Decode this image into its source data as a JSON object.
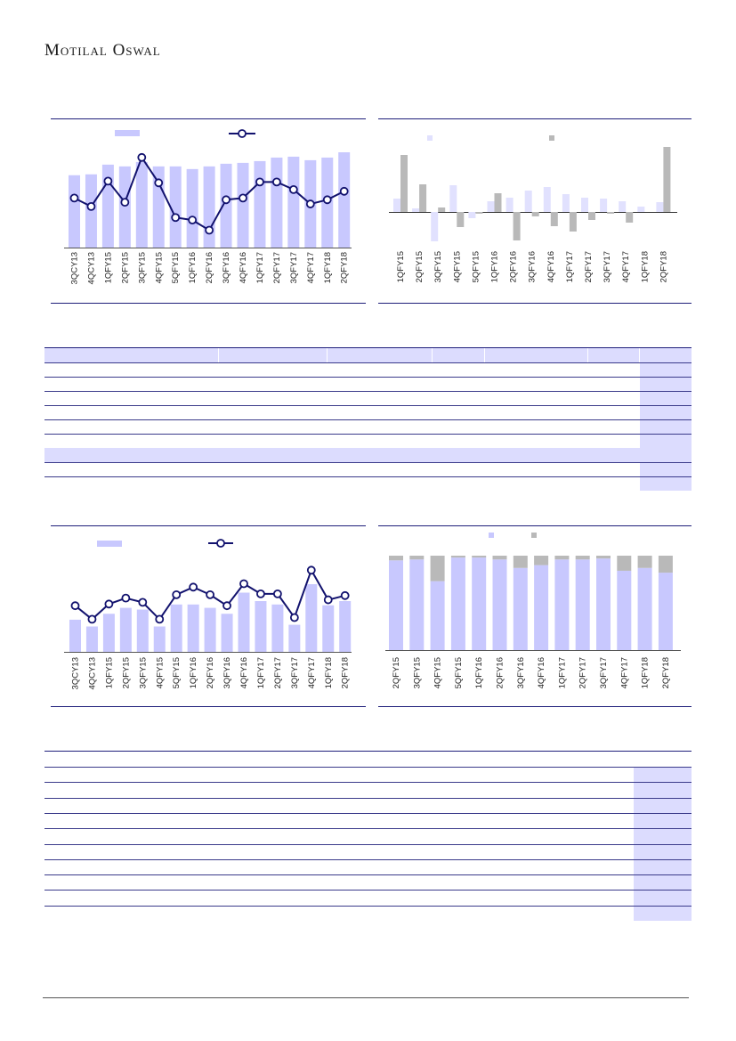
{
  "header": {
    "logo_text": "Motilal Oswal"
  },
  "colors": {
    "bar": "#c8c8fe",
    "bar_light": "#e1e1fe",
    "grey": "#b9b9b9",
    "line": "#12126e",
    "rule": "#1e1e7a",
    "highlight": "#dcdcfe"
  },
  "chart_data": [
    {
      "type": "bar",
      "categories": [
        "3QCY13",
        "4QCY13",
        "1QFY15",
        "2QFY15",
        "3QFY15",
        "4QFY15",
        "5QFY15",
        "1QFY16",
        "2QFY16",
        "3QFY16",
        "4QFY16",
        "1QFY17",
        "2QFY17",
        "3QFY17",
        "4QFY17",
        "1QFY18",
        "2QFY18"
      ],
      "series": [
        {
          "values": [
            82,
            83,
            94,
            92,
            97,
            92,
            92,
            89,
            92,
            95,
            96,
            98,
            102,
            103,
            99,
            102,
            108
          ]
        },
        {
          "values": [
            48,
            38,
            68,
            43,
            96,
            66,
            25,
            22,
            10,
            46,
            48,
            67,
            67,
            58,
            41,
            46,
            56
          ]
        }
      ],
      "legend": "top"
    },
    {
      "type": "bar",
      "categories": [
        "1QFY15",
        "2QFY15",
        "3QFY15",
        "4QFY15",
        "5QFY15",
        "1QFY16",
        "2QFY16",
        "3QFY16",
        "4QFY16",
        "1QFY17",
        "2QFY17",
        "3QFY17",
        "4QFY17",
        "1QFY18",
        "2QFY18"
      ],
      "series": [
        {
          "values": [
            15,
            4,
            -33,
            30,
            -7,
            12,
            16,
            24,
            28,
            20,
            16,
            15,
            12,
            6,
            11
          ]
        },
        {
          "values": [
            64,
            31,
            5,
            -17,
            -2,
            21,
            -32,
            -5,
            -16,
            -22,
            -9,
            -2,
            -12,
            0,
            73
          ]
        }
      ],
      "legend": "top"
    },
    {
      "type": "bar",
      "categories": [
        "3QCY13",
        "4QCY13",
        "1QFY15",
        "2QFY15",
        "3QFY15",
        "4QFY15",
        "5QFY15",
        "1QFY16",
        "2QFY16",
        "3QFY16",
        "4QFY16",
        "1QFY17",
        "2QFY17",
        "3QFY17",
        "4QFY17",
        "1QFY18",
        "2QFY18"
      ],
      "series": [
        {
          "values": [
            38,
            30,
            45,
            52,
            50,
            30,
            56,
            56,
            52,
            45,
            70,
            60,
            56,
            32,
            80,
            55,
            60
          ]
        },
        {
          "values": [
            44,
            28,
            46,
            53,
            48,
            28,
            57,
            66,
            57,
            44,
            70,
            58,
            58,
            30,
            86,
            51,
            56
          ]
        }
      ],
      "legend": "top"
    },
    {
      "type": "bar",
      "stacked": true,
      "categories": [
        "2QFY15",
        "3QFY15",
        "4QFY15",
        "5QFY15",
        "1QFY16",
        "2QFY16",
        "3QFY16",
        "4QFY16",
        "1QFY17",
        "2QFY17",
        "3QFY17",
        "4QFY17",
        "1QFY18",
        "2QFY18"
      ],
      "series": [
        {
          "values": [
            95,
            96,
            73,
            98,
            98,
            96,
            87,
            90,
            96,
            96,
            97,
            84,
            87,
            82
          ]
        },
        {
          "values": [
            5,
            4,
            27,
            2,
            2,
            4,
            13,
            10,
            4,
            4,
            3,
            16,
            13,
            18
          ]
        }
      ],
      "ylim": [
        0,
        100
      ],
      "legend": "top"
    }
  ],
  "tables": [
    {
      "rows": 9,
      "highlight_rows": [
        0,
        7
      ]
    },
    {
      "rows": 10,
      "highlight_rows": []
    }
  ]
}
